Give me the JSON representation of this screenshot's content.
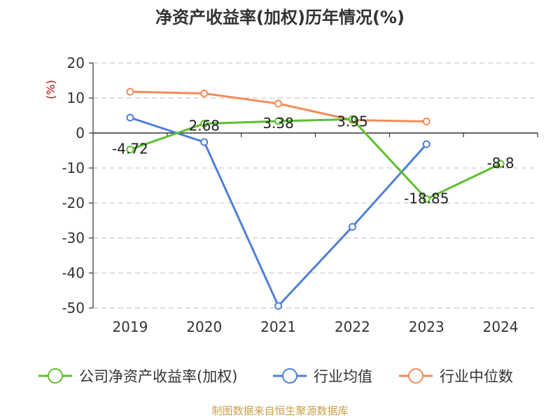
{
  "chart_data": {
    "type": "line",
    "title": "净资产收益率(加权)历年情况(%)",
    "ylabel": "(%)",
    "xlabel": "",
    "categories": [
      "2019",
      "2020",
      "2021",
      "2022",
      "2023",
      "2024"
    ],
    "ylim": [
      -50,
      20
    ],
    "yticks": [
      20,
      10,
      0,
      -10,
      -20,
      -30,
      -40,
      -50
    ],
    "grid": true,
    "legend_position": "bottom",
    "series": [
      {
        "name": "公司净资产收益率(加权)",
        "color": "#5dbf2e",
        "values": [
          -4.72,
          2.68,
          3.38,
          3.95,
          -18.85,
          -8.8
        ],
        "labels": [
          "-4.72",
          "2.68",
          "3.38",
          "3.95",
          "-18.85",
          "-8.8"
        ]
      },
      {
        "name": "行业均值",
        "color": "#4f7fd6",
        "values": [
          4.4,
          -2.6,
          -49.4,
          -26.8,
          -3.2,
          null
        ],
        "labels": null
      },
      {
        "name": "行业中位数",
        "color": "#f28c5a",
        "values": [
          11.8,
          11.3,
          8.4,
          3.7,
          3.3,
          null
        ],
        "labels": null
      }
    ],
    "source": "制图数据来自恒生聚源数据库"
  },
  "colors": {
    "grid": "#cccccc",
    "axis": "#333333",
    "unit": "#cc0000",
    "source": "#c8a04a"
  }
}
